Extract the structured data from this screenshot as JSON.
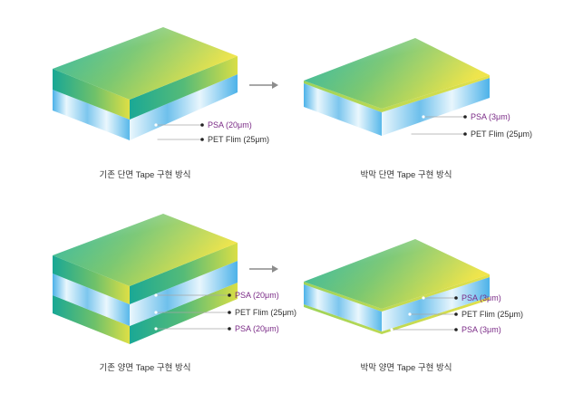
{
  "colors": {
    "top_start": "#1cb1a0",
    "top_mid": "#74c56c",
    "top_end": "#efe447",
    "front_dark": "#18a795",
    "front_yellow": "#dedf45",
    "psa_edge": "#c4d948",
    "film_blue": "#4cb2e9",
    "film_light": "#e9f7fd",
    "psa_label": "#7a2a86",
    "film_label": "#333333",
    "arrow": "#8c8c8c",
    "leader": "#a6a6a6"
  },
  "panels": {
    "conventional_single": {
      "caption": "기존 단면 Tape 구현 방식",
      "labels": [
        {
          "text": "PSA (20μm)",
          "kind": "psa"
        },
        {
          "text": "PET Flim (25μm)",
          "kind": "film"
        }
      ]
    },
    "thin_single": {
      "caption": "박막 단면 Tape 구현 방식",
      "labels": [
        {
          "text": "PSA (3μm)",
          "kind": "psa"
        },
        {
          "text": "PET Flim (25μm)",
          "kind": "film"
        }
      ]
    },
    "conventional_double": {
      "caption": "기존 양면 Tape 구현 방식",
      "labels": [
        {
          "text": "PSA (20μm)",
          "kind": "psa"
        },
        {
          "text": "PET Flim (25μm)",
          "kind": "film"
        },
        {
          "text": "PSA (20μm)",
          "kind": "psa"
        }
      ]
    },
    "thin_double": {
      "caption": "박막 양면 Tape 구현 방식",
      "labels": [
        {
          "text": "PSA (3μm)",
          "kind": "psa"
        },
        {
          "text": "PET Flim (25μm)",
          "kind": "film"
        },
        {
          "text": "PSA (3μm)",
          "kind": "psa"
        }
      ]
    }
  },
  "arrows": [
    {
      "from": "conventional_single",
      "to": "thin_single",
      "icon": "arrow-right-icon"
    },
    {
      "from": "conventional_double",
      "to": "thin_double",
      "icon": "arrow-right-icon"
    }
  ]
}
